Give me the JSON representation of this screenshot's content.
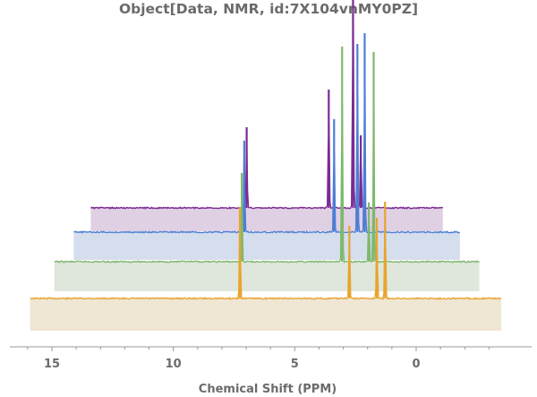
{
  "chart_data": {
    "type": "line",
    "title": "Object[Data, NMR, id:7X104vnMY0PZ]",
    "xlabel": "Chemical Shift  (PPM)",
    "ylabel": "",
    "x_reversed": true,
    "xlim": [
      -3.5,
      16.0
    ],
    "xticks": [
      15,
      10,
      5,
      0
    ],
    "xtick_labels": [
      "15",
      "10",
      "5",
      "0"
    ],
    "grid": false,
    "legend": "none",
    "layout_style": "stacked-waterfall",
    "series": [
      {
        "color": "#e8a42c",
        "fill": "#f0e6d4",
        "x_range": [
          15.9,
          -3.5
        ],
        "peaks": [
          {
            "x": 7.26,
            "height": 0.34
          },
          {
            "x": 2.75,
            "height": 0.27
          },
          {
            "x": 1.62,
            "height": 0.3
          },
          {
            "x": 1.28,
            "height": 0.36
          }
        ]
      },
      {
        "color": "#7fb86e",
        "fill": "#dfe6dc",
        "x_range": [
          14.9,
          -2.6
        ],
        "peaks": [
          {
            "x": 7.18,
            "height": 0.33
          },
          {
            "x": 3.05,
            "height": 0.8
          },
          {
            "x": 1.95,
            "height": 0.22
          },
          {
            "x": 1.75,
            "height": 0.78
          }
        ]
      },
      {
        "color": "#4d7fd4",
        "fill": "#d5deec",
        "x_range": [
          14.1,
          -1.8
        ],
        "peaks": [
          {
            "x": 7.08,
            "height": 0.34
          },
          {
            "x": 3.38,
            "height": 0.42
          },
          {
            "x": 2.42,
            "height": 0.7
          },
          {
            "x": 2.12,
            "height": 0.74
          }
        ]
      },
      {
        "color": "#7c2a94",
        "fill": "#e0d0e4",
        "x_range": [
          13.4,
          -1.1
        ],
        "peaks": [
          {
            "x": 6.98,
            "height": 0.3
          },
          {
            "x": 3.6,
            "height": 0.44
          },
          {
            "x": 2.6,
            "height": 0.95
          },
          {
            "x": 2.28,
            "height": 0.27
          }
        ]
      }
    ]
  }
}
